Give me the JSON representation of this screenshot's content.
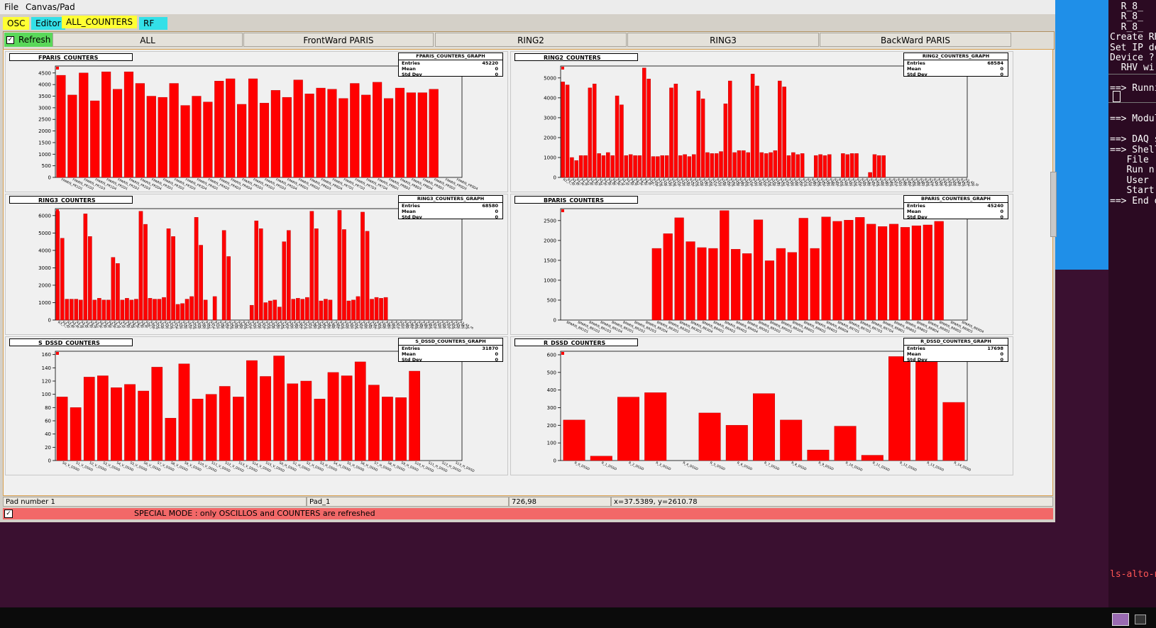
{
  "menubar": {
    "file": "File",
    "canvas_pad": "Canvas/Pad"
  },
  "tabs": [
    {
      "label": "OSC",
      "color": "#ffff33"
    },
    {
      "label": "Editor",
      "color": "#33e0e8"
    },
    {
      "label": "ALL_COUNTERS",
      "color": "#ffff33"
    },
    {
      "label": "RF",
      "color": "#33e0e8"
    }
  ],
  "toolbar": {
    "refresh_label": "Refresh",
    "nav": [
      "ALL",
      "FrontWard PARIS",
      "RING2",
      "RING3",
      "BackWard PARIS"
    ]
  },
  "statusbar": {
    "pad_number": "Pad number 1",
    "pad_name": "Pad_1",
    "pixel": "726,98",
    "coords": "x=37.5389, y=2610.78"
  },
  "special_mode": "SPECIAL MODE : only OSCILLOS and COUNTERS are refreshed",
  "terminal": {
    "lines": [
      "  R_8_",
      "  R_8_",
      "  R_8_",
      "Create RH",
      "Set IP de",
      "Device ? ",
      "  RHV wi",
      "",
      "==> Runnin",
      "",
      "",
      "==> Modul",
      "",
      "==> DAQ s",
      "==> Shell",
      "   File ",
      "   Run n",
      "   User ",
      "   Start",
      "==> End o"
    ],
    "prompt": "ls-alto-n"
  },
  "colors": {
    "bar": "#ff0000",
    "accent": "#d8a050"
  },
  "chart_data": [
    {
      "type": "bar",
      "title": "FPARIS_COUNTERS",
      "stats": {
        "name": "FPARIS_COUNTERS_GRAPH",
        "entries": "45220",
        "mean": "0",
        "std": "0"
      },
      "ylim": [
        0,
        4800
      ],
      "yticks": [
        0,
        500,
        1000,
        1500,
        2000,
        2500,
        3000,
        3500,
        4000,
        4500
      ],
      "categories": [
        "FPARIS_FR1D1",
        "FPARIS_FR1D2",
        "FPARIS_FR1D3",
        "FPARIS_FR1D4",
        "FPARIS_FR2D1",
        "FPARIS_FR2D2",
        "FPARIS_FR2D3",
        "FPARIS_FR2D4",
        "FPARIS_FR3D1",
        "FPARIS_FR3D2",
        "FPARIS_FR3D3",
        "FPARIS_FR3D4",
        "FPARIS_FR4D1",
        "FPARIS_FR4D2",
        "FPARIS_FR4D3",
        "FPARIS_FR4D4",
        "FPARIS_FR5D1",
        "FPARIS_FR5D2",
        "FPARIS_FR5D3",
        "FPARIS_FR5D4",
        "FPARIS_FR6D1",
        "FPARIS_FR6D2",
        "FPARIS_FR6D3",
        "FPARIS_FR6D4",
        "FPARIS_FR7D1",
        "FPARIS_FR7D2",
        "FPARIS_FR7D3",
        "FPARIS_FR7D4",
        "FPARIS_FR8D1",
        "FPARIS_FR8D2",
        "FPARIS_FR8D3",
        "FPARIS_FR8D4",
        "FPARIS_FR9D1",
        "FPARIS_FR9D2",
        "FPARIS_FR9D3",
        "FPARIS_FR9D4"
      ],
      "values": [
        4400,
        3550,
        4500,
        3300,
        4550,
        3800,
        4550,
        4050,
        3500,
        3450,
        4050,
        3100,
        3500,
        3250,
        4150,
        4250,
        3150,
        4250,
        3200,
        3750,
        3450,
        4200,
        3600,
        3850,
        3800,
        3400,
        4050,
        3550,
        4100,
        3400,
        3850,
        3650,
        3650,
        3800,
        0,
        0
      ]
    },
    {
      "type": "bar",
      "title": "RING2_COUNTERS",
      "stats": {
        "name": "RING2_COUNTERS_GRAPH",
        "entries": "68584",
        "mean": "0",
        "std": "0"
      },
      "ylim": [
        0,
        5600
      ],
      "yticks": [
        0,
        1000,
        2000,
        3000,
        4000,
        5000
      ],
      "categories": [
        "R2_1_SI",
        "R2_1_bl",
        "R2_2_re",
        "R2_2_gr",
        "R2_3_bl",
        "R2_3_SI",
        "R2_4_gr",
        "R2_4_re",
        "R2_5_SI",
        "R2_5_bl",
        "R2_6_re",
        "R2_6_gr",
        "R2_7_bl",
        "R2_7_SI",
        "R2_8_gr",
        "R2_8_re",
        "R2_9_SI",
        "R2_9_bl",
        "R2_10_re",
        "R2_10_gr",
        "R2_11_bl",
        "R2_11_SI",
        "R2_12_gr",
        "R2_12_re",
        "R2_13_SI",
        "R2_13_bl",
        "R2_14_re",
        "R2_14_gr",
        "R2_15_bl",
        "R2_15_SI",
        "R2_16_gr",
        "R2_16_re",
        "R2_17_SI",
        "R2_17_bl",
        "R2_18_re",
        "R2_18_gr",
        "R2_19_bl",
        "R2_19_SI",
        "R2_20_gr",
        "R2_20_re",
        "R2_21_SI",
        "R2_21_bl",
        "R2_22_re",
        "R2_22_gr",
        "R2_23_bl",
        "R2_23_SI",
        "R2_24_gr",
        "R2_24_re",
        "R2_25_SI",
        "R2_25_bl",
        "R2_26_re",
        "R2_26_gr",
        "R2_27_bl",
        "R2_27_SI",
        "R2_28_gr",
        "R2_28_re",
        "R2_29_SI",
        "R2_29_bl",
        "R2_30_re",
        "R2_30_gr",
        "R2_31_bl",
        "R2_31_SI",
        "R2_32_gr",
        "R2_32_re",
        "R2_33_SI",
        "R2_33_bl",
        "R2_34_re",
        "R2_34_gr",
        "R2_35_bl",
        "R2_35_SI",
        "R2_36_gr",
        "R2_36_re",
        "R2_37_SI",
        "R2_37_bl",
        "R2_38_re",
        "R2_38_gr",
        "R2_39_bl",
        "R2_39_SI",
        "R2_40_gr",
        "R2_40_re",
        "R2_41_SI",
        "R2_41_bl",
        "R2_42_re",
        "R2_42_gr",
        "R2_43_bl",
        "R2_43_SI",
        "R2_44_gr",
        "R2_44_re",
        "R2_45_SI",
        "R2_45_bl"
      ],
      "values": [
        4800,
        4650,
        1000,
        850,
        1100,
        1100,
        4500,
        4700,
        1200,
        1100,
        1250,
        1100,
        4100,
        3650,
        1100,
        1150,
        1100,
        1100,
        5500,
        4950,
        1050,
        1050,
        1100,
        1100,
        4500,
        4700,
        1100,
        1150,
        1050,
        1150,
        4350,
        3950,
        1250,
        1200,
        1200,
        1300,
        3700,
        4850,
        1250,
        1350,
        1350,
        1250,
        5200,
        4600,
        1250,
        1200,
        1250,
        1350,
        4850,
        4550,
        1100,
        1250,
        1150,
        1200,
        0,
        0,
        1100,
        1150,
        1100,
        1150,
        0,
        0,
        1200,
        1150,
        1200,
        1200,
        0,
        0,
        250,
        1150,
        1100,
        1100,
        0,
        0,
        0,
        0,
        0,
        0,
        0,
        0,
        0,
        0,
        0,
        0,
        0,
        0,
        0,
        0,
        0,
        0
      ]
    },
    {
      "type": "bar",
      "title": "RING3_COUNTERS",
      "stats": {
        "name": "RING3_COUNTERS_GRAPH",
        "entries": "68580",
        "mean": "0",
        "std": "0"
      },
      "ylim": [
        0,
        6400
      ],
      "yticks": [
        0,
        1000,
        2000,
        3000,
        4000,
        5000,
        6000
      ],
      "categories": [
        "R3_1_SI",
        "R3_1_bl",
        "R3_2_re",
        "R3_2_gr",
        "R3_3_bl",
        "R3_3_SI",
        "R3_4_gr",
        "R3_4_re",
        "R3_5_SI",
        "R3_5_bl",
        "R3_6_re",
        "R3_6_gr",
        "R3_7_bl",
        "R3_7_SI",
        "R3_8_gr",
        "R3_8_re",
        "R3_9_SI",
        "R3_9_bl",
        "R3_10_re",
        "R3_10_gr",
        "R3_11_bl",
        "R3_11_SI",
        "R3_12_gr",
        "R3_12_re",
        "R3_13_SI",
        "R3_13_bl",
        "R3_14_re",
        "R3_14_gr",
        "R3_15_bl",
        "R3_15_SI",
        "R3_16_gr",
        "R3_16_re",
        "R3_17_SI",
        "R3_17_bl",
        "R3_18_re",
        "R3_18_gr",
        "R3_19_bl",
        "R3_19_SI",
        "R3_20_gr",
        "R3_20_re",
        "R3_21_SI",
        "R3_21_bl",
        "R3_22_re",
        "R3_22_gr",
        "R3_23_bl",
        "R3_23_SI",
        "R3_24_gr",
        "R3_24_re",
        "R3_25_SI",
        "R3_25_bl",
        "R3_26_re",
        "R3_26_gr",
        "R3_27_bl",
        "R3_27_SI",
        "R3_28_gr",
        "R3_28_re",
        "R3_29_SI",
        "R3_29_bl",
        "R3_30_re",
        "R3_30_gr",
        "R3_31_bl",
        "R3_31_SI",
        "R3_32_gr",
        "R3_32_re",
        "R3_33_SI",
        "R3_33_bl",
        "R3_34_re",
        "R3_34_gr",
        "R3_35_bl",
        "R3_35_SI",
        "R3_36_gr",
        "R3_36_re",
        "R3_37_SI",
        "R3_37_bl",
        "R3_38_re",
        "R3_38_gr",
        "R3_39_bl",
        "R3_39_SI",
        "R3_40_gr",
        "R3_40_re",
        "R3_41_SI",
        "R3_41_bl",
        "R3_42_re",
        "R3_42_gr",
        "R3_43_bl",
        "R3_43_SI",
        "R3_44_gr",
        "R3_44_re"
      ],
      "values": [
        6250,
        4700,
        1200,
        1200,
        1200,
        1150,
        6100,
        4800,
        1150,
        1250,
        1150,
        1150,
        3600,
        3250,
        1150,
        1250,
        1150,
        1200,
        6250,
        5500,
        1250,
        1200,
        1200,
        1300,
        5250,
        4800,
        900,
        950,
        1200,
        1350,
        5900,
        4300,
        1150,
        0,
        1350,
        0,
        5150,
        3650,
        0,
        0,
        0,
        0,
        850,
        5700,
        5250,
        1000,
        1100,
        1150,
        750,
        4500,
        5150,
        1200,
        1250,
        1200,
        1300,
        6250,
        5250,
        1100,
        1200,
        1150,
        0,
        6300,
        5200,
        1100,
        1150,
        1350,
        6200,
        5100,
        1200,
        1300,
        1250,
        1300,
        0,
        0,
        0,
        0,
        0,
        0,
        0,
        0,
        0,
        0,
        0,
        0,
        0,
        0,
        0,
        0
      ]
    },
    {
      "type": "bar",
      "title": "BPARIS_COUNTERS",
      "stats": {
        "name": "BPARIS_COUNTERS_GRAPH",
        "entries": "45240",
        "mean": "0",
        "std": "0"
      },
      "ylim": [
        0,
        2800
      ],
      "yticks": [
        0,
        500,
        1000,
        1500,
        2000,
        2500
      ],
      "categories": [
        "BPARIS_BR1D1",
        "BPARIS_BR1D2",
        "BPARIS_BR1D3",
        "BPARIS_BR1D4",
        "BPARIS_BR2D1",
        "BPARIS_BR2D2",
        "BPARIS_BR2D3",
        "BPARIS_BR2D4",
        "BPARIS_BR3D1",
        "BPARIS_BR3D2",
        "BPARIS_BR3D3",
        "BPARIS_BR3D4",
        "BPARIS_BR4D1",
        "BPARIS_BR4D2",
        "BPARIS_BR4D3",
        "BPARIS_BR4D4",
        "BPARIS_BR5D1",
        "BPARIS_BR5D2",
        "BPARIS_BR5D3",
        "BPARIS_BR5D4",
        "BPARIS_BR6D1",
        "BPARIS_BR6D2",
        "BPARIS_BR6D3",
        "BPARIS_BR6D4",
        "BPARIS_BR7D1",
        "BPARIS_BR7D2",
        "BPARIS_BR7D3",
        "BPARIS_BR7D4",
        "BPARIS_BR8D1",
        "BPARIS_BR8D2",
        "BPARIS_BR8D3",
        "BPARIS_BR8D4",
        "BPARIS_BR9D1",
        "BPARIS_BR9D2",
        "BPARIS_BR9D3",
        "BPARIS_BR9D4"
      ],
      "values": [
        0,
        0,
        0,
        0,
        0,
        0,
        0,
        0,
        1800,
        2170,
        2570,
        1970,
        1820,
        1800,
        2750,
        1780,
        1670,
        2520,
        1490,
        1800,
        1700,
        2560,
        1800,
        2590,
        2480,
        2510,
        2580,
        2410,
        2350,
        2410,
        2330,
        2370,
        2390,
        2480,
        0,
        0
      ]
    },
    {
      "type": "bar",
      "title": "S_DSSD_COUNTERS",
      "stats": {
        "name": "S_DSSD_COUNTERS_GRAPH",
        "entries": "31870",
        "mean": "0",
        "std": "0"
      },
      "ylim": [
        0,
        165
      ],
      "yticks": [
        0,
        20,
        40,
        60,
        80,
        100,
        120,
        140,
        160
      ],
      "categories": [
        "S0_V_DSSD",
        "S1_V_DSSD",
        "S2_V_DSSD",
        "S3_V_DSSD",
        "S4_V_DSSD",
        "S5_V_DSSD",
        "S6_V_DSSD",
        "S7_V_DSSD",
        "S8_V_DSSD",
        "S9_V_DSSD",
        "S10_V_DSSD",
        "S11_V_DSSD",
        "S12_V_DSSD",
        "S13_V_DSSD",
        "S14_V_DSSD",
        "S15_V_DSSD",
        "S0_H_DSSD",
        "S1_H_DSSD",
        "S2_H_DSSD",
        "S3_H_DSSD",
        "S4_H_DSSD",
        "S5_H_DSSD",
        "S6_H_DSSD",
        "S7_H_DSSD",
        "S8_H_DSSD",
        "S9_H_DSSD",
        "S10_H_DSSD",
        "S11_H_DSSD",
        "S12_H_DSSD",
        "S13_H_DSSD"
      ],
      "values": [
        96,
        80,
        126,
        128,
        110,
        115,
        105,
        141,
        64,
        146,
        93,
        100,
        112,
        96,
        151,
        127,
        158,
        116,
        120,
        93,
        133,
        128,
        149,
        114,
        96,
        95,
        135,
        0,
        0,
        0
      ]
    },
    {
      "type": "bar",
      "title": "R_DSSD_COUNTERS",
      "stats": {
        "name": "R_DSSD_COUNTERS_GRAPH",
        "entries": "17698",
        "mean": "0",
        "std": "0"
      },
      "ylim": [
        0,
        620
      ],
      "yticks": [
        0,
        100,
        200,
        300,
        400,
        500,
        600
      ],
      "categories": [
        "R_0_DSSD",
        "R_1_DSSD",
        "R_2_DSSD",
        "R_3_DSSD",
        "R_4_DSSD",
        "R_5_DSSD",
        "R_6_DSSD",
        "R_7_DSSD",
        "R_8_DSSD",
        "R_9_DSSD",
        "R_10_DSSD",
        "R_11_DSSD",
        "R_12_DSSD",
        "R_13_DSSD",
        "R_14_DSSD"
      ],
      "values": [
        230,
        25,
        360,
        385,
        0,
        270,
        200,
        380,
        230,
        60,
        195,
        30,
        590,
        580,
        330
      ]
    }
  ]
}
